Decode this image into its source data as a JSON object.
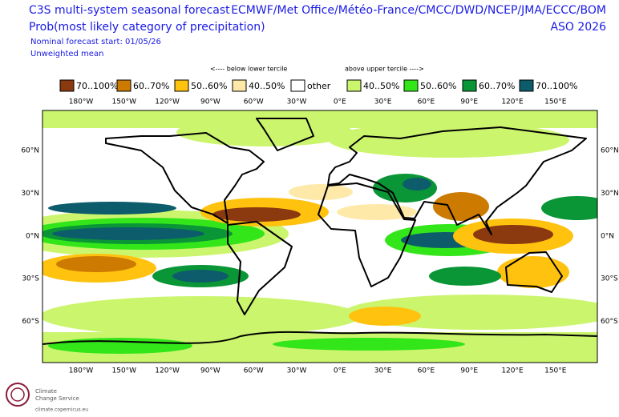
{
  "header": {
    "title": "C3S multi-system seasonal forecast",
    "subtitle": "Prob(most likely category of precipitation)",
    "forecast_start": "Nominal forecast start: 01/05/26",
    "weighting": "Unweighted mean",
    "systems": "ECMWF/Met Office/Météo-France/CMCC/DWD/NCEP/JMA/ECCC/BOM",
    "period": "ASO 2026"
  },
  "legend": {
    "below_label": "<---- below lower tercile",
    "above_label": "above upper tercile ---->",
    "items": [
      {
        "label": "70..100%",
        "color": "#8b3a10"
      },
      {
        "label": "60..70%",
        "color": "#cc7a00"
      },
      {
        "label": "50..60%",
        "color": "#ffc20e"
      },
      {
        "label": "40..50%",
        "color": "#ffe9a8"
      },
      {
        "label": "other",
        "color": "#ffffff"
      },
      {
        "label": "40..50%",
        "color": "#ccf56e"
      },
      {
        "label": "50..60%",
        "color": "#33e61a"
      },
      {
        "label": "60..70%",
        "color": "#0a9636"
      },
      {
        "label": "70..100%",
        "color": "#0d5c6b"
      }
    ]
  },
  "map": {
    "lon_labels": [
      "180°W",
      "150°W",
      "120°W",
      "90°W",
      "60°W",
      "30°W",
      "0°E",
      "30°E",
      "60°E",
      "90°E",
      "120°E",
      "150°E"
    ],
    "lat_labels": [
      "60°N",
      "30°N",
      "0°N",
      "30°S",
      "60°S"
    ]
  },
  "logo": {
    "name_line1": "Climate",
    "name_line2": "Change Service",
    "url": "climate.copernicus.eu"
  }
}
